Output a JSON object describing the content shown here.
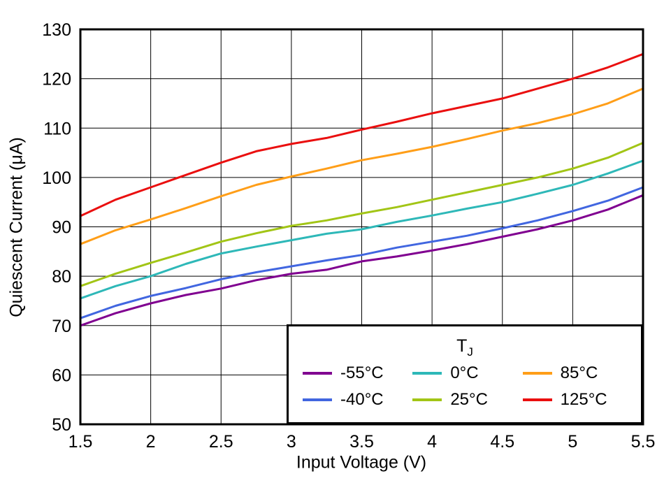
{
  "chart_data": {
    "type": "line",
    "title": "",
    "xlabel": "Input Voltage (V)",
    "ylabel": "Quiescent Current (μA)",
    "xlim": [
      1.5,
      5.5
    ],
    "ylim": [
      50,
      130
    ],
    "grid": true,
    "legend_position": "inside bottom-right",
    "xticks": [
      1.5,
      2,
      2.5,
      3,
      3.5,
      4,
      4.5,
      5,
      5.5
    ],
    "xtick_labels": [
      "1.5",
      "2",
      "2.5",
      "3",
      "3.5",
      "4",
      "4.5",
      "5",
      "5.5"
    ],
    "yticks": [
      50,
      60,
      70,
      80,
      90,
      100,
      110,
      120,
      130
    ],
    "ytick_labels": [
      "50",
      "60",
      "70",
      "80",
      "90",
      "100",
      "110",
      "120",
      "130"
    ],
    "x": [
      1.5,
      1.75,
      2,
      2.25,
      2.5,
      2.75,
      3,
      3.25,
      3.5,
      3.75,
      4,
      4.25,
      4.5,
      4.75,
      5,
      5.25,
      5.5
    ],
    "series": [
      {
        "name": "-55°C",
        "color": "#800090",
        "values": [
          70.0,
          72.5,
          74.5,
          76.2,
          77.5,
          79.2,
          80.5,
          81.3,
          83.0,
          84.0,
          85.2,
          86.5,
          88.0,
          89.5,
          91.3,
          93.5,
          96.4
        ]
      },
      {
        "name": "-40°C",
        "color": "#4166E0",
        "values": [
          71.5,
          74.0,
          76.0,
          77.6,
          79.4,
          80.8,
          82.0,
          83.2,
          84.3,
          85.8,
          87.0,
          88.2,
          89.7,
          91.3,
          93.2,
          95.3,
          98.0
        ]
      },
      {
        "name": "0°C",
        "color": "#2EB8B8",
        "values": [
          75.5,
          78.0,
          80.0,
          82.5,
          84.6,
          86.0,
          87.3,
          88.6,
          89.5,
          91.0,
          92.3,
          93.7,
          95.0,
          96.7,
          98.5,
          100.8,
          103.4
        ]
      },
      {
        "name": "25°C",
        "color": "#A2C516",
        "values": [
          78.0,
          80.5,
          82.7,
          84.8,
          87.0,
          88.7,
          90.2,
          91.3,
          92.7,
          94.0,
          95.5,
          97.0,
          98.5,
          100.0,
          101.8,
          104.0,
          107.0
        ]
      },
      {
        "name": "85°C",
        "color": "#FF9E18",
        "values": [
          86.5,
          89.3,
          91.5,
          93.8,
          96.2,
          98.5,
          100.2,
          101.8,
          103.5,
          104.8,
          106.2,
          107.8,
          109.5,
          111.0,
          112.8,
          115.0,
          118.0
        ]
      },
      {
        "name": "125°C",
        "color": "#EA0F0F",
        "values": [
          92.2,
          95.5,
          98.0,
          100.5,
          103.0,
          105.3,
          106.8,
          108.0,
          109.7,
          111.3,
          113.0,
          114.5,
          116.0,
          118.0,
          120.0,
          122.3,
          125.0
        ]
      }
    ]
  },
  "legend": {
    "title_main": "T",
    "title_sub": "J"
  },
  "style": {
    "line_width": 3,
    "grid_color": "#000000",
    "border_color": "#000000",
    "background": "#ffffff"
  }
}
